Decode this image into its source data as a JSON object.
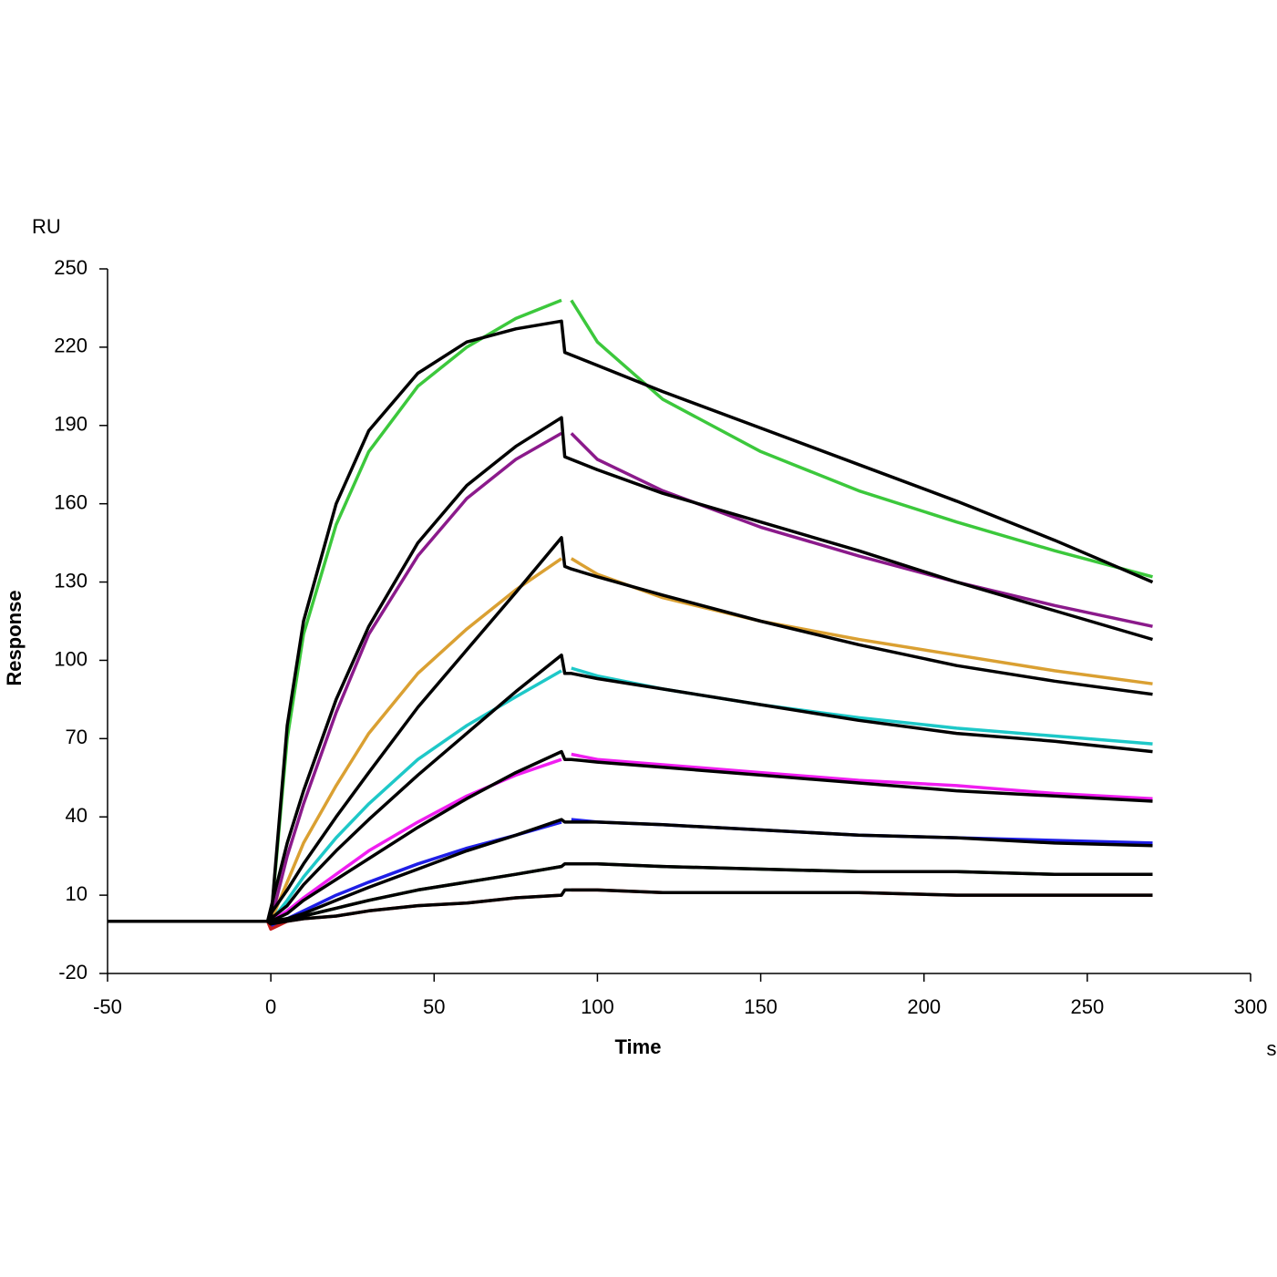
{
  "chart_data": {
    "type": "line",
    "y_unit": "RU",
    "y_label": "Response",
    "x_label": "Time",
    "x_unit": "s",
    "x": [
      -50,
      -1,
      0,
      5,
      10,
      20,
      30,
      45,
      60,
      75,
      89,
      90,
      92,
      100,
      120,
      150,
      180,
      210,
      240,
      270
    ],
    "xlim": [
      -50,
      300
    ],
    "xticks": [
      -50,
      0,
      50,
      100,
      150,
      200,
      250,
      300
    ],
    "ylim": [
      -20,
      250
    ],
    "yticks": [
      -20,
      10,
      40,
      70,
      100,
      130,
      160,
      190,
      220,
      250
    ],
    "series": [
      {
        "color": "#3cc83c",
        "values": [
          0,
          0,
          0,
          70,
          110,
          152,
          180,
          205,
          220,
          231,
          238,
          null,
          238,
          222,
          200,
          180,
          165,
          153,
          142,
          132
        ]
      },
      {
        "color": "#8b1a8b",
        "values": [
          0,
          0,
          0,
          25,
          45,
          80,
          110,
          140,
          162,
          177,
          187,
          null,
          187,
          177,
          165,
          151,
          140,
          130,
          121,
          113
        ]
      },
      {
        "color": "#daa032",
        "values": [
          0,
          0,
          0,
          15,
          30,
          52,
          72,
          95,
          112,
          127,
          139,
          null,
          139,
          133,
          124,
          115,
          108,
          102,
          96,
          91
        ]
      },
      {
        "color": "#1ec8c8",
        "values": [
          0,
          0,
          0,
          8,
          17,
          32,
          45,
          62,
          75,
          86,
          96,
          null,
          97,
          94,
          89,
          83,
          78,
          74,
          71,
          68
        ]
      },
      {
        "color": "#f01ef0",
        "values": [
          0,
          0,
          0,
          4,
          9,
          18,
          27,
          38,
          48,
          56,
          62,
          null,
          64,
          62,
          60,
          57,
          54,
          52,
          49,
          47
        ]
      },
      {
        "color": "#1e1ee6",
        "values": [
          0,
          0,
          -2,
          1,
          4,
          10,
          15,
          22,
          28,
          33,
          38,
          null,
          39,
          38,
          37,
          35,
          33,
          32,
          31,
          30
        ]
      },
      {
        "color": "#1e6e1e",
        "values": [
          0,
          0,
          0,
          1,
          2,
          5,
          8,
          12,
          15,
          18,
          21,
          null,
          22,
          22,
          21,
          20,
          19,
          19,
          18,
          18
        ]
      },
      {
        "color": "#c81e1e",
        "values": [
          0,
          0,
          -3,
          0,
          1,
          2,
          4,
          6,
          7,
          9,
          10,
          null,
          12,
          12,
          11,
          11,
          11,
          10,
          10,
          10
        ]
      },
      {
        "color": "#000000",
        "values": [
          0,
          0,
          0,
          75,
          115,
          160,
          188,
          210,
          222,
          227,
          230,
          218,
          217,
          213,
          203,
          189,
          175,
          161,
          146,
          130
        ]
      },
      {
        "color": "#000000",
        "values": [
          0,
          0,
          5,
          30,
          50,
          85,
          113,
          145,
          167,
          182,
          193,
          178,
          177,
          173,
          164,
          153,
          142,
          130,
          119,
          108
        ]
      },
      {
        "color": "#000000",
        "values": [
          0,
          0,
          3,
          12,
          22,
          40,
          57,
          82,
          104,
          126,
          147,
          136,
          135,
          132,
          125,
          115,
          106,
          98,
          92,
          87
        ]
      },
      {
        "color": "#000000",
        "values": [
          0,
          0,
          1,
          6,
          14,
          27,
          39,
          56,
          72,
          88,
          102,
          95,
          95,
          93,
          89,
          83,
          77,
          72,
          69,
          65
        ]
      },
      {
        "color": "#000000",
        "values": [
          0,
          0,
          0,
          3,
          8,
          16,
          24,
          36,
          47,
          57,
          65,
          62,
          62,
          61,
          59,
          56,
          53,
          50,
          48,
          46
        ]
      },
      {
        "color": "#000000",
        "values": [
          0,
          0,
          -1,
          1,
          3,
          8,
          13,
          20,
          27,
          33,
          39,
          38,
          38,
          38,
          37,
          35,
          33,
          32,
          30,
          29
        ]
      },
      {
        "color": "#000000",
        "values": [
          0,
          0,
          0,
          1,
          2,
          5,
          8,
          12,
          15,
          18,
          21,
          22,
          22,
          22,
          21,
          20,
          19,
          19,
          18,
          18
        ]
      },
      {
        "color": "#000000",
        "values": [
          0,
          0,
          -1,
          0,
          1,
          2,
          4,
          6,
          7,
          9,
          10,
          12,
          12,
          12,
          11,
          11,
          11,
          10,
          10,
          10
        ]
      }
    ]
  }
}
